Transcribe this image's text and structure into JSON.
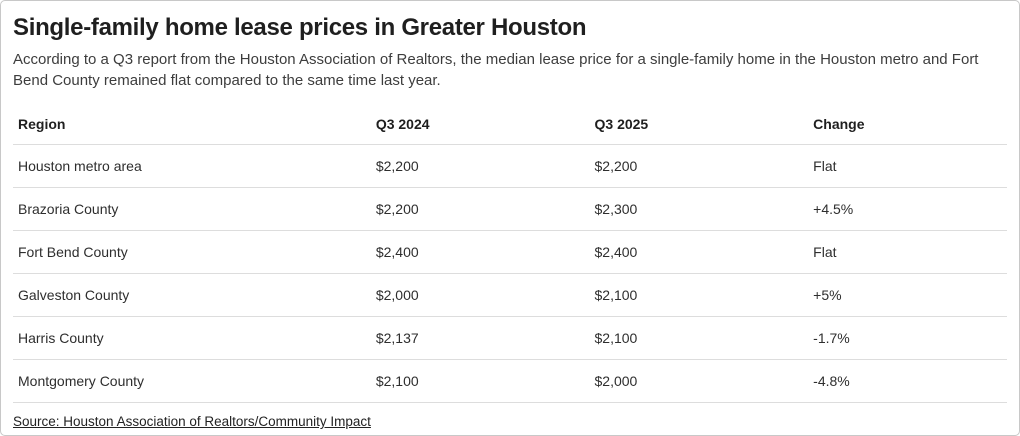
{
  "chart_data": {
    "type": "table",
    "title": "Single-family home lease prices in Greater Houston",
    "subtitle": "According to a Q3 report from the Houston Association of Realtors, the median lease price for a single-family home in the Houston metro and Fort Bend County remained flat compared to the same time last year.",
    "columns": [
      "Region",
      "Q3 2024",
      "Q3 2025",
      "Change"
    ],
    "rows": [
      [
        "Houston metro area",
        "$2,200",
        "$2,200",
        "Flat"
      ],
      [
        "Brazoria County",
        "$2,200",
        "$2,300",
        "+4.5%"
      ],
      [
        "Fort Bend County",
        "$2,400",
        "$2,400",
        "Flat"
      ],
      [
        "Galveston County",
        "$2,000",
        "$2,100",
        "+5%"
      ],
      [
        "Harris County",
        "$2,137",
        "$2,100",
        "-1.7%"
      ],
      [
        "Montgomery County",
        "$2,100",
        "$2,000",
        "-4.8%"
      ]
    ],
    "source": "Source: Houston Association of Realtors/Community Impact",
    "legend_position": "none",
    "grid": "horizontal-dividers"
  },
  "colors": {
    "title_text": "#1f1f1f",
    "body_text": "#2e2e2e",
    "divider": "#dddddd",
    "card_border": "#c8c8c8",
    "background": "#ffffff"
  }
}
